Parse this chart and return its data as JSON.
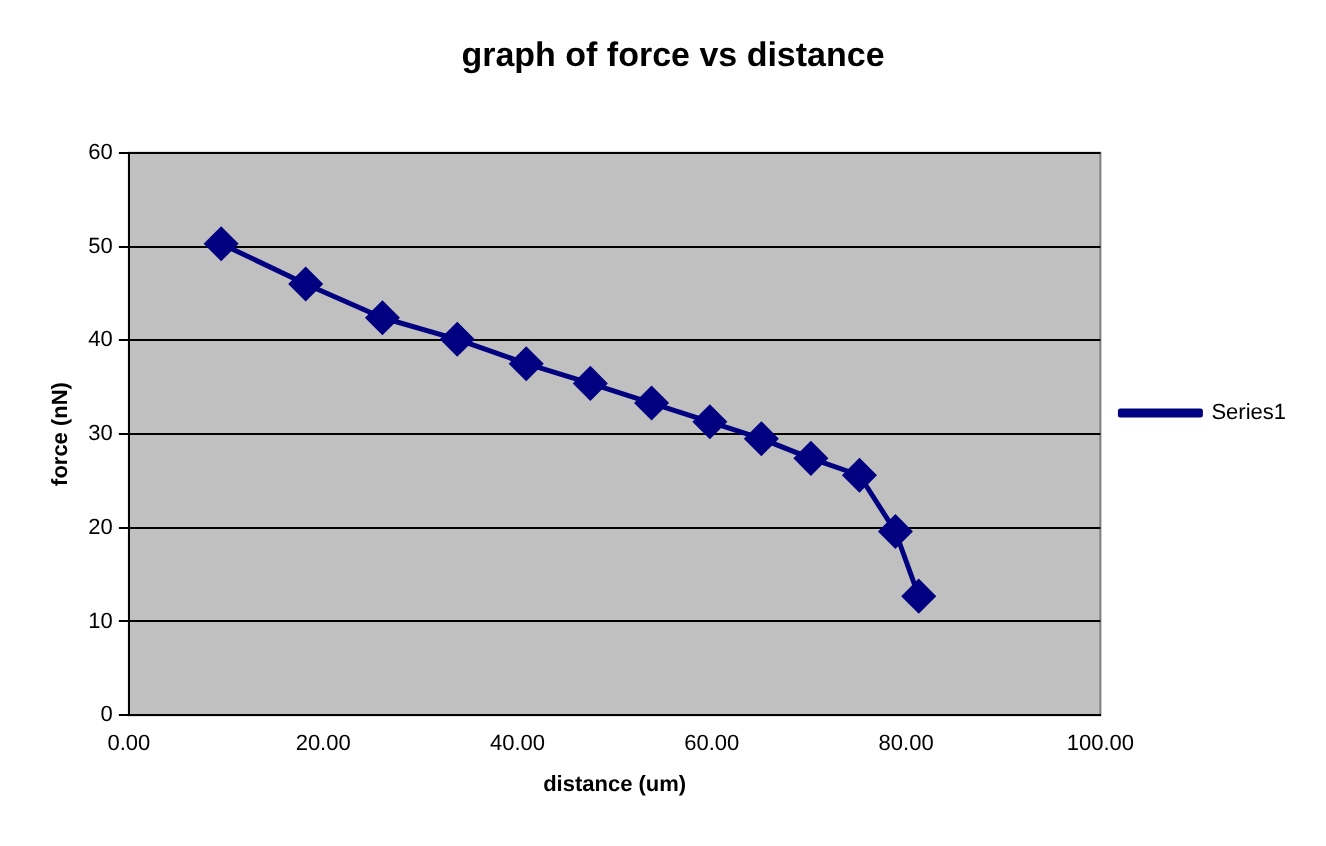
{
  "chart_data": {
    "type": "line",
    "title": "graph of force vs distance",
    "xlabel": "distance (um)",
    "ylabel": "force (nN)",
    "x": [
      9.5,
      18.2,
      26.1,
      33.8,
      40.9,
      47.5,
      53.8,
      59.8,
      65.1,
      70.2,
      75.2,
      78.9,
      81.3
    ],
    "series": [
      {
        "name": "Series1",
        "color": "#000080",
        "values": [
          50.3,
          46.0,
          42.4,
          40.1,
          37.5,
          35.4,
          33.3,
          31.3,
          29.5,
          27.4,
          25.6,
          19.6,
          12.7
        ]
      }
    ],
    "xlim": [
      0,
      100
    ],
    "xticks": [
      {
        "value": 0,
        "label": "0.00"
      },
      {
        "value": 20,
        "label": "20.00"
      },
      {
        "value": 40,
        "label": "40.00"
      },
      {
        "value": 60,
        "label": "60.00"
      },
      {
        "value": 80,
        "label": "80.00"
      },
      {
        "value": 100,
        "label": "100.00"
      }
    ],
    "ylim": [
      0,
      60
    ],
    "yticks": [
      0,
      10,
      20,
      30,
      40,
      50,
      60
    ],
    "grid": "y",
    "legend": "right",
    "marker": "diamond",
    "line_style": "solid"
  }
}
